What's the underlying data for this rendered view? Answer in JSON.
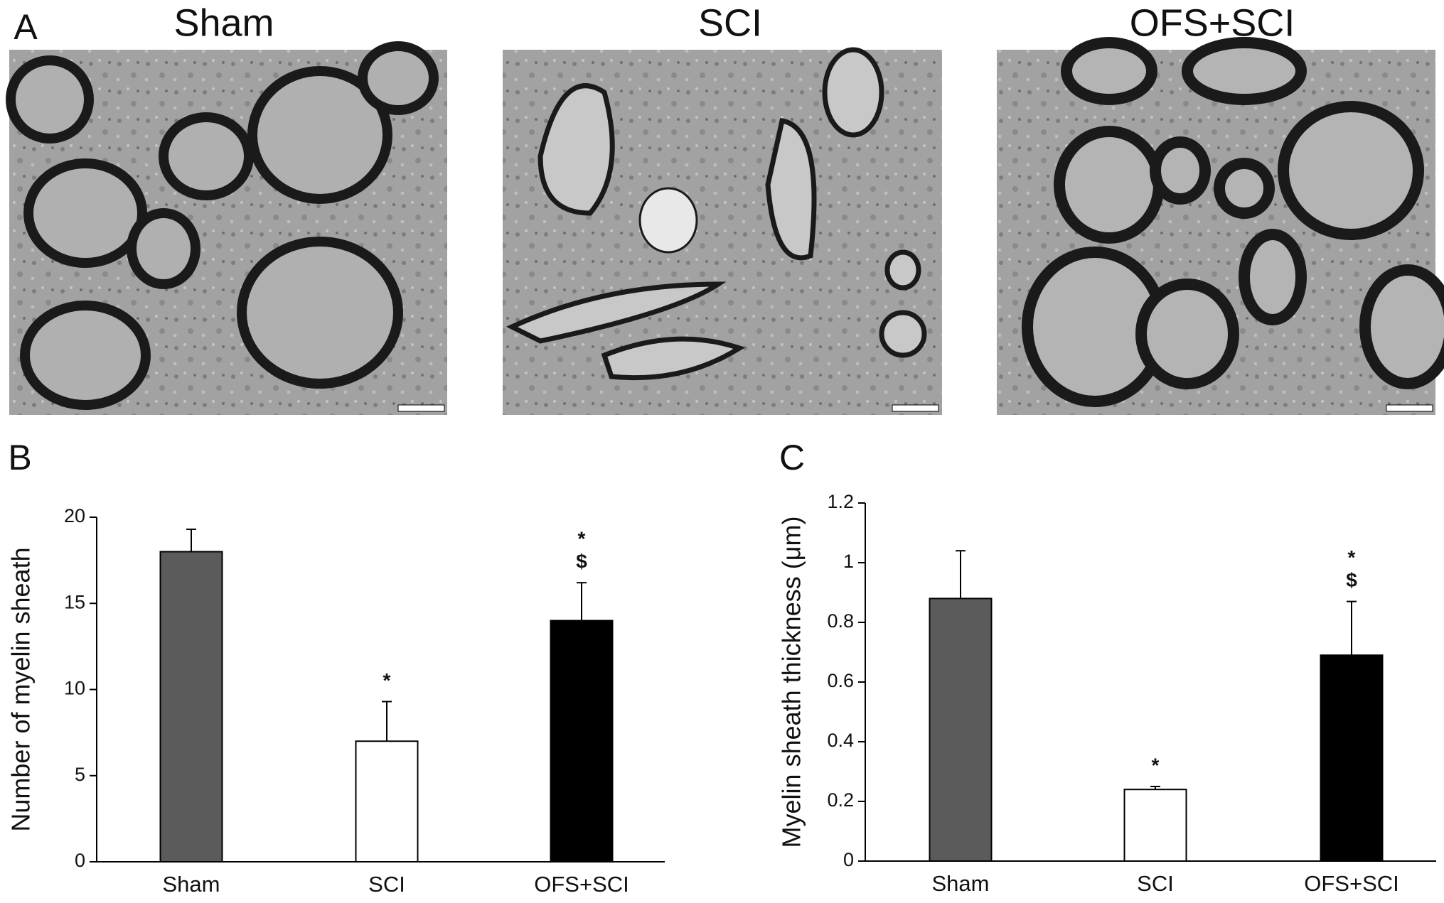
{
  "panel_a": {
    "label": "A",
    "images": [
      {
        "title": "Sham"
      },
      {
        "title": "SCI"
      },
      {
        "title": "OFS+SCI"
      }
    ]
  },
  "chart_data": [
    {
      "type": "bar",
      "panel_label": "B",
      "ylabel": "Number of myelin sheath",
      "categories": [
        "Sham",
        "SCI",
        "OFS+SCI"
      ],
      "values": [
        18,
        7,
        14
      ],
      "errors": [
        1.3,
        2.3,
        2.2
      ],
      "colors": [
        "#5b5b5b",
        "#ffffff",
        "#000000"
      ],
      "markers": [
        null,
        [
          "*"
        ],
        [
          "*",
          "$"
        ]
      ],
      "ylim": [
        0,
        20
      ],
      "yticks": [
        0,
        5,
        10,
        15,
        20
      ]
    },
    {
      "type": "bar",
      "panel_label": "C",
      "ylabel": "Myelin sheath thickness (μm)",
      "categories": [
        "Sham",
        "SCI",
        "OFS+SCI"
      ],
      "values": [
        0.88,
        0.24,
        0.69
      ],
      "errors": [
        0.16,
        0.01,
        0.18
      ],
      "colors": [
        "#5b5b5b",
        "#ffffff",
        "#000000"
      ],
      "markers": [
        null,
        [
          "*"
        ],
        [
          "*",
          "$"
        ]
      ],
      "ylim": [
        0,
        1.2
      ],
      "yticks": [
        0,
        0.2,
        0.4,
        0.6,
        0.8,
        1,
        1.2
      ]
    }
  ]
}
